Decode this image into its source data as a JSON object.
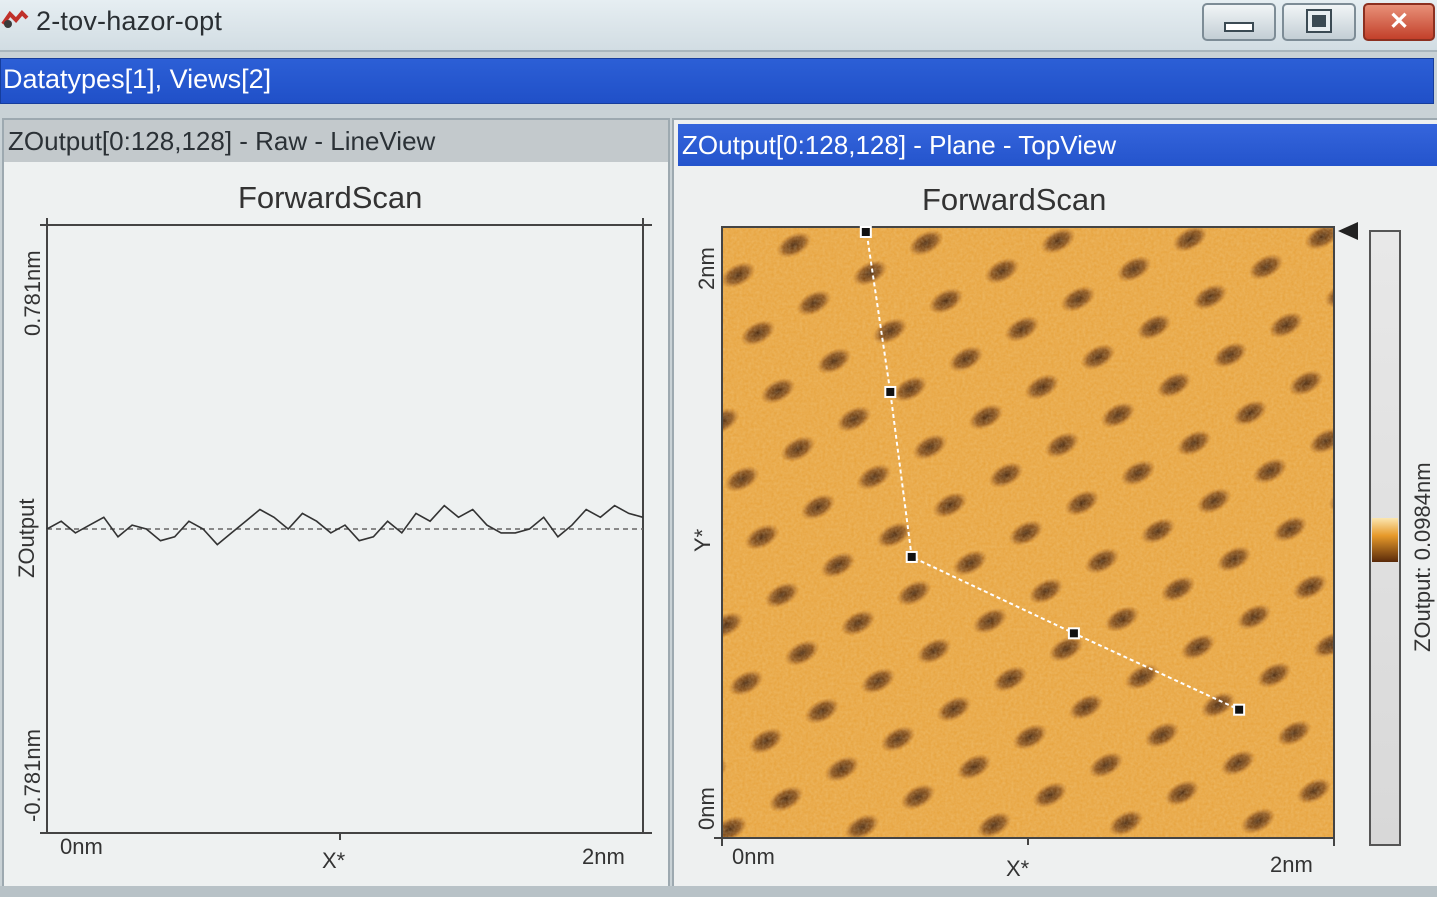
{
  "window": {
    "title": "2-tov-hazor-opt",
    "buttons": {
      "minimize": "",
      "maximize": "",
      "close": "✕"
    }
  },
  "mdi": {
    "header": "Datatypes[1], Views[2]"
  },
  "line_view": {
    "header": "ZOutput[0:128,128] - Raw - LineView",
    "title": "ForwardScan",
    "y_max_label": "0.781nm",
    "y_min_label": "-0.781nm",
    "y_axis_label": "ZOutput",
    "x_min_label": "0nm",
    "x_max_label": "2nm",
    "x_axis_label": "X*"
  },
  "top_view": {
    "header": "ZOutput[0:128,128] - Plane - TopView",
    "title": "ForwardScan",
    "y_max_label": "2nm",
    "y_min_label": "0nm",
    "y_axis_label": "Y*",
    "x_min_label": "0nm",
    "x_max_label": "2nm",
    "x_axis_label": "X*",
    "colorbar_label": "ZOutput: 0.0984nm",
    "image_colors": {
      "bright": "#f7d78e",
      "mid": "#e09a2a",
      "dark": "#5a2a0a"
    }
  },
  "chart_data": [
    {
      "type": "line",
      "title": "ForwardScan",
      "xlabel": "X*",
      "ylabel": "ZOutput",
      "xlim": [
        0,
        2
      ],
      "ylim": [
        -0.781,
        0.781
      ],
      "series": [
        {
          "values": [
            0.0,
            0.02,
            -0.01,
            0.01,
            0.03,
            -0.02,
            0.01,
            0.0,
            -0.03,
            -0.02,
            0.02,
            0.0,
            -0.04,
            -0.01,
            0.02,
            0.05,
            0.03,
            0.0,
            0.04,
            0.02,
            -0.01,
            0.01,
            -0.03,
            -0.02,
            0.02,
            -0.01,
            0.04,
            0.02,
            0.06,
            0.03,
            0.05,
            0.01,
            -0.01,
            -0.01,
            0.0,
            0.03,
            -0.02,
            0.01,
            0.05,
            0.03,
            0.06,
            0.04,
            0.03
          ]
        }
      ]
    },
    {
      "type": "heatmap",
      "title": "ForwardScan",
      "xlabel": "X*",
      "ylabel": "Y*",
      "xlim": [
        0,
        2
      ],
      "ylim": [
        0,
        2
      ],
      "colorbar": "ZOutput: 0.0984nm",
      "profile_path": [
        {
          "x": 0.47,
          "y": 2.0
        },
        {
          "x": 0.55,
          "y": 1.46
        },
        {
          "x": 0.62,
          "y": 0.92
        },
        {
          "x": 1.15,
          "y": 0.67
        },
        {
          "x": 1.69,
          "y": 0.42
        }
      ]
    }
  ]
}
